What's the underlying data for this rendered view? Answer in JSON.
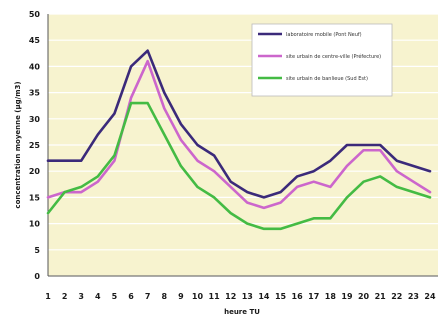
{
  "chart_data": {
    "type": "line",
    "xlabel": "heure TU",
    "ylabel": "concentration moyenne (µg/m3)",
    "x": [
      1,
      2,
      3,
      4,
      5,
      6,
      7,
      8,
      9,
      10,
      11,
      12,
      13,
      14,
      15,
      16,
      17,
      18,
      19,
      20,
      21,
      22,
      23,
      24
    ],
    "xlim": [
      1,
      24
    ],
    "ylim": [
      0,
      50
    ],
    "yticks": [
      0,
      5,
      10,
      15,
      20,
      25,
      30,
      35,
      40,
      45,
      50
    ],
    "grid": true,
    "legend_position": "top-right",
    "series": [
      {
        "name": "laboratoire mobile (Pont Neuf)",
        "color": "#3b2a7a",
        "values": [
          22,
          22,
          22,
          27,
          31,
          40,
          43,
          35,
          29,
          25,
          23,
          18,
          16,
          15,
          16,
          19,
          20,
          22,
          25,
          25,
          25,
          22,
          21,
          20
        ]
      },
      {
        "name": "site urbain de centre-ville (Préfecture)",
        "color": "#cc66cc",
        "values": [
          15,
          16,
          16,
          18,
          22,
          34,
          41,
          32,
          26,
          22,
          20,
          17,
          14,
          13,
          14,
          17,
          18,
          17,
          21,
          24,
          24,
          20,
          18,
          16
        ]
      },
      {
        "name": "site urbain de banlieue (Sud Est)",
        "color": "#44bb44",
        "values": [
          12,
          16,
          17,
          19,
          23,
          33,
          33,
          27,
          21,
          17,
          15,
          12,
          10,
          9,
          9,
          10,
          11,
          11,
          15,
          18,
          19,
          17,
          16,
          15
        ]
      }
    ]
  },
  "colors": {
    "plot_background": "#f7f3cf",
    "grid": "#ffffff",
    "legend_background": "#ffffff",
    "axis": "#555555"
  }
}
